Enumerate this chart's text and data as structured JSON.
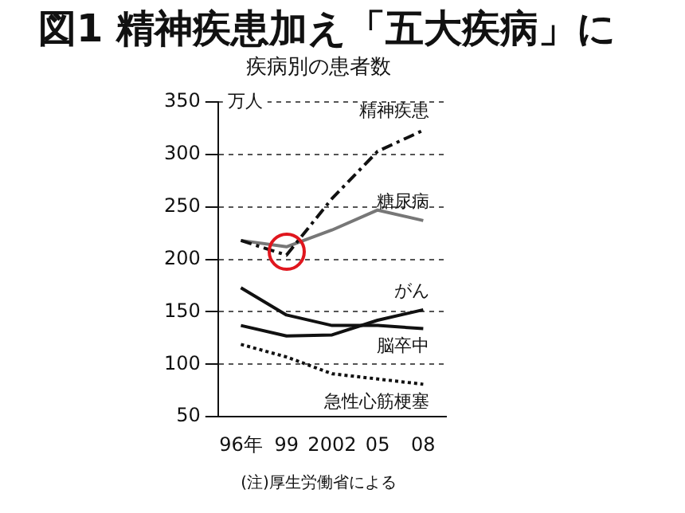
{
  "chart_data": {
    "type": "line",
    "title": "図1 精神疾患加え「五大疾病」に",
    "subtitle": "疾病別の患者数",
    "ylabel": "万人",
    "annotations": [
      "(注)厚生労働省による"
    ],
    "categories": [
      "96年",
      "99",
      "2002",
      "05",
      "08"
    ],
    "series": [
      {
        "name": "精神疾患",
        "color": "#111111",
        "values": [
          218,
          204,
          258,
          303,
          323
        ],
        "line_style": "dashed"
      },
      {
        "name": "糖尿病",
        "color": "#777777",
        "values": [
          218,
          212,
          228,
          247,
          237
        ]
      },
      {
        "name": "がん",
        "color": "#111111",
        "values": [
          137,
          127,
          128,
          142,
          152
        ]
      },
      {
        "name": "脳卒中",
        "color": "#111111",
        "values": [
          173,
          147,
          137,
          137,
          134
        ]
      },
      {
        "name": "急性心筋梗塞",
        "color": "#111111",
        "values": [
          119,
          107,
          91,
          86,
          81
        ],
        "line_style": "dotted"
      }
    ],
    "ylim": [
      50,
      350
    ],
    "yticks": [
      50,
      100,
      150,
      200,
      250,
      300,
      350
    ],
    "grid": "y",
    "legend": false,
    "marker": "none"
  }
}
